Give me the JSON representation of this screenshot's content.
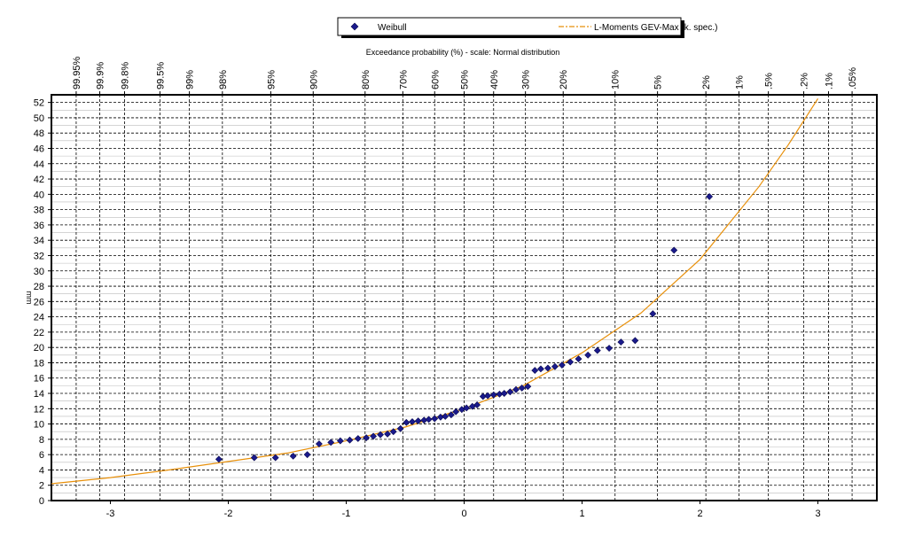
{
  "chart_data": {
    "type": "scatter",
    "title": "",
    "top_axis_title": "Exceedance probability (%) - scale: Normal distribution",
    "xlabel": "",
    "ylabel": "mm",
    "xlim": [
      -3.5,
      3.5
    ],
    "ylim": [
      0,
      53
    ],
    "x_ticks": [
      -3,
      -2,
      -1,
      0,
      1,
      2,
      3
    ],
    "x_tick_labels": [
      "-3",
      "-2",
      "-1",
      "0",
      "1",
      "2",
      "3"
    ],
    "y_ticks": [
      0,
      2,
      4,
      6,
      8,
      10,
      12,
      14,
      16,
      18,
      20,
      22,
      24,
      26,
      28,
      30,
      32,
      34,
      36,
      38,
      40,
      42,
      44,
      46,
      48,
      50,
      52
    ],
    "y_tick_labels": [
      "0",
      "2",
      "4",
      "6",
      "8",
      "10",
      "12",
      "14",
      "16",
      "18",
      "20",
      "22",
      "24",
      "26",
      "28",
      "30",
      "32",
      "34",
      "36",
      "38",
      "40",
      "42",
      "44",
      "46",
      "48",
      "50",
      "52"
    ],
    "grid": true,
    "legend_position": "top-center",
    "exceedance_ticks": [
      {
        "z": -3.29,
        "label": "99.95%"
      },
      {
        "z": -3.09,
        "label": "99.9%"
      },
      {
        "z": -2.88,
        "label": "99.8%"
      },
      {
        "z": -2.58,
        "label": "99.5%"
      },
      {
        "z": -2.33,
        "label": "99%"
      },
      {
        "z": -2.05,
        "label": "98%"
      },
      {
        "z": -1.64,
        "label": "95%"
      },
      {
        "z": -1.28,
        "label": "90%"
      },
      {
        "z": -0.84,
        "label": "80%"
      },
      {
        "z": -0.52,
        "label": "70%"
      },
      {
        "z": -0.25,
        "label": "60%"
      },
      {
        "z": 0.0,
        "label": "50%"
      },
      {
        "z": 0.25,
        "label": "40%"
      },
      {
        "z": 0.52,
        "label": "30%"
      },
      {
        "z": 0.84,
        "label": "20%"
      },
      {
        "z": 1.28,
        "label": "10%"
      },
      {
        "z": 1.64,
        "label": "5%"
      },
      {
        "z": 2.05,
        "label": "2%"
      },
      {
        "z": 2.33,
        "label": "1%"
      },
      {
        "z": 2.58,
        "label": ".5%"
      },
      {
        "z": 2.88,
        "label": ".2%"
      },
      {
        "z": 3.09,
        "label": ".1%"
      },
      {
        "z": 3.29,
        "label": ".05%"
      }
    ],
    "series": [
      {
        "name": "Weibull",
        "marker": "diamond",
        "color": "#1a1a8c",
        "points": [
          [
            -2.08,
            5.4
          ],
          [
            -1.78,
            5.6
          ],
          [
            -1.6,
            5.6
          ],
          [
            -1.45,
            5.8
          ],
          [
            -1.33,
            6.0
          ],
          [
            -1.23,
            7.4
          ],
          [
            -1.13,
            7.6
          ],
          [
            -1.05,
            7.8
          ],
          [
            -0.97,
            7.9
          ],
          [
            -0.9,
            8.1
          ],
          [
            -0.83,
            8.2
          ],
          [
            -0.77,
            8.4
          ],
          [
            -0.71,
            8.6
          ],
          [
            -0.65,
            8.7
          ],
          [
            -0.6,
            9.0
          ],
          [
            -0.54,
            9.4
          ],
          [
            -0.49,
            10.2
          ],
          [
            -0.44,
            10.3
          ],
          [
            -0.39,
            10.4
          ],
          [
            -0.34,
            10.5
          ],
          [
            -0.3,
            10.6
          ],
          [
            -0.25,
            10.7
          ],
          [
            -0.2,
            10.9
          ],
          [
            -0.16,
            11.0
          ],
          [
            -0.11,
            11.2
          ],
          [
            -0.07,
            11.6
          ],
          [
            -0.02,
            11.9
          ],
          [
            0.02,
            12.1
          ],
          [
            0.07,
            12.3
          ],
          [
            0.11,
            12.5
          ],
          [
            0.16,
            13.6
          ],
          [
            0.2,
            13.7
          ],
          [
            0.25,
            13.8
          ],
          [
            0.3,
            13.9
          ],
          [
            0.34,
            14.0
          ],
          [
            0.39,
            14.2
          ],
          [
            0.44,
            14.5
          ],
          [
            0.49,
            14.7
          ],
          [
            0.54,
            14.9
          ],
          [
            0.6,
            17.0
          ],
          [
            0.65,
            17.2
          ],
          [
            0.71,
            17.3
          ],
          [
            0.77,
            17.5
          ],
          [
            0.83,
            17.7
          ],
          [
            0.9,
            18.1
          ],
          [
            0.97,
            18.5
          ],
          [
            1.05,
            19.0
          ],
          [
            1.13,
            19.6
          ],
          [
            1.23,
            19.9
          ],
          [
            1.33,
            20.7
          ],
          [
            1.45,
            20.9
          ],
          [
            1.6,
            24.4
          ],
          [
            1.78,
            32.7
          ],
          [
            2.08,
            39.7
          ]
        ]
      },
      {
        "name": "L-Moments GEV-Max (k. spec.)",
        "marker": "line",
        "color": "#e8900a",
        "points": [
          [
            -3.5,
            2.2
          ],
          [
            -3.0,
            3.0
          ],
          [
            -2.5,
            4.0
          ],
          [
            -2.0,
            5.1
          ],
          [
            -1.5,
            6.2
          ],
          [
            -1.0,
            7.8
          ],
          [
            -0.5,
            9.6
          ],
          [
            0.0,
            12.0
          ],
          [
            0.5,
            15.0
          ],
          [
            1.0,
            19.3
          ],
          [
            1.5,
            24.5
          ],
          [
            2.0,
            31.5
          ],
          [
            2.5,
            41.0
          ],
          [
            2.75,
            46.5
          ],
          [
            3.0,
            52.5
          ]
        ]
      }
    ]
  }
}
